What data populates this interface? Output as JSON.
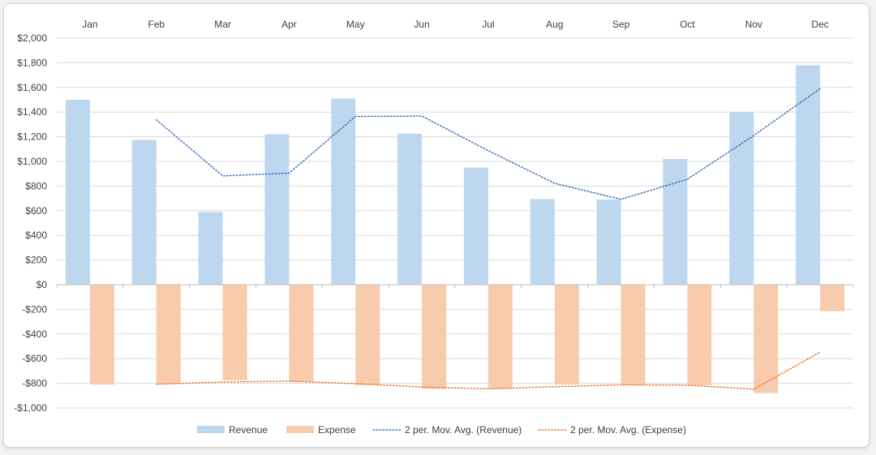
{
  "chart_data": {
    "type": "bar",
    "categories": [
      "Jan",
      "Feb",
      "Mar",
      "Apr",
      "May",
      "Jun",
      "Jul",
      "Aug",
      "Sep",
      "Oct",
      "Nov",
      "Dec"
    ],
    "series": [
      {
        "name": "Revenue",
        "kind": "bar",
        "color": "#bdd7ee",
        "values": [
          1500,
          1175,
          590,
          1220,
          1510,
          1225,
          950,
          695,
          690,
          1020,
          1400,
          1780
        ]
      },
      {
        "name": "Expense",
        "kind": "bar",
        "color": "#f8cbad",
        "values": [
          -810,
          -805,
          -775,
          -790,
          -815,
          -845,
          -845,
          -810,
          -815,
          -815,
          -880,
          -215
        ]
      },
      {
        "name": "2 per. Mov. Avg. (Revenue)",
        "kind": "line",
        "style": "dotted",
        "color": "#4472c4",
        "values": [
          null,
          1337.5,
          882.5,
          905,
          1365,
          1367.5,
          1087.5,
          822.5,
          692.5,
          855,
          1210,
          1590
        ]
      },
      {
        "name": "2 per. Mov. Avg. (Expense)",
        "kind": "line",
        "style": "dotted",
        "color": "#ed7d31",
        "values": [
          null,
          -807.5,
          -790,
          -782.5,
          -802.5,
          -830,
          -845,
          -827.5,
          -812.5,
          -815,
          -847.5,
          -547.5
        ]
      }
    ],
    "ylim": [
      -1000,
      2000
    ],
    "yticks": [
      2000,
      1800,
      1600,
      1400,
      1200,
      1000,
      800,
      600,
      400,
      200,
      0,
      -200,
      -400,
      -600,
      -800,
      -1000
    ],
    "ytick_labels": [
      "$2,000",
      "$1,800",
      "$1,600",
      "$1,400",
      "$1,200",
      "$1,000",
      "$800",
      "$600",
      "$400",
      "$200",
      "$0",
      "-$200",
      "-$400",
      "-$600",
      "-$800",
      "-$1,000"
    ],
    "category_axis_position": "top",
    "grid": true,
    "legend_position": "bottom"
  }
}
